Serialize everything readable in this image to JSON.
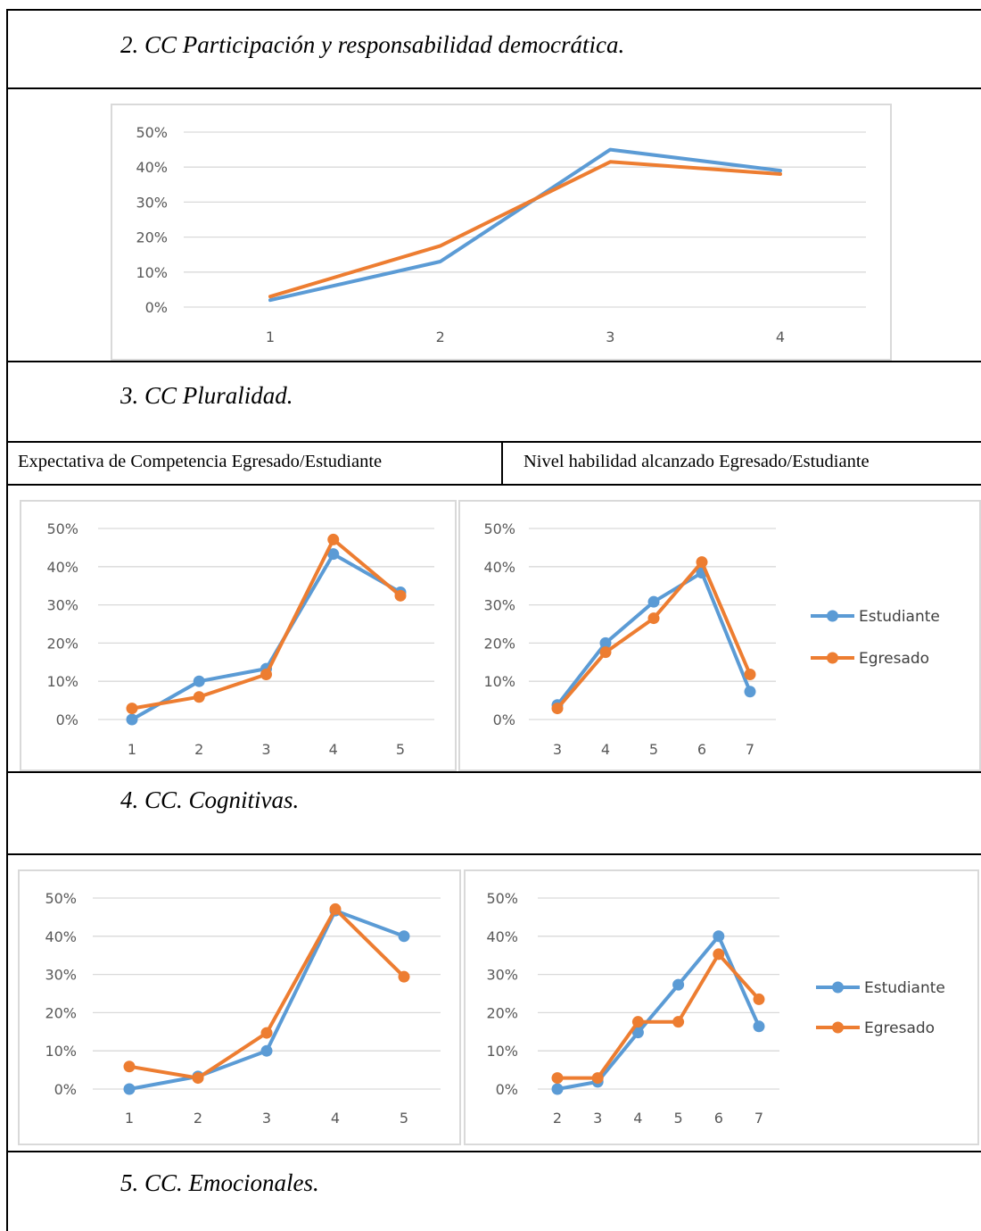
{
  "sections": {
    "s2_title": "2. CC Participación y responsabilidad democrática.",
    "s3_title": "3. CC Pluralidad.",
    "s4_title": "4. CC. Cognitivas.",
    "s5_title": "5. CC. Emocionales."
  },
  "column_headers": {
    "left": "Expectativa de Competencia Egresado/Estudiante",
    "right": "Nivel habilidad alcanzado Egresado/Estudiante"
  },
  "colors": {
    "estudiante": "#5b9bd5",
    "egresado": "#ed7d31",
    "grid": "#d9d9d9",
    "tick": "#595959"
  },
  "chart_data": [
    {
      "id": "c1",
      "type": "line",
      "title": "",
      "categories": [
        "1",
        "2",
        "3",
        "4"
      ],
      "ylim": [
        0,
        50
      ],
      "yticks": [
        "0%",
        "10%",
        "20%",
        "30%",
        "40%",
        "50%"
      ],
      "grid": true,
      "markers": false,
      "legend": [],
      "series": [
        {
          "key": "estudiante",
          "values": [
            2,
            13,
            45,
            39
          ]
        },
        {
          "key": "egresado",
          "values": [
            3,
            17.5,
            41.5,
            38
          ]
        }
      ]
    },
    {
      "id": "c2",
      "type": "line",
      "title": "",
      "categories": [
        "1",
        "2",
        "3",
        "4",
        "5"
      ],
      "ylim": [
        0,
        50
      ],
      "yticks": [
        "0%",
        "10%",
        "20%",
        "30%",
        "40%",
        "50%"
      ],
      "grid": true,
      "markers": true,
      "legend": [],
      "series": [
        {
          "key": "estudiante",
          "values": [
            0,
            10,
            13.3,
            43.3,
            33.3
          ]
        },
        {
          "key": "egresado",
          "values": [
            2.9,
            5.9,
            11.8,
            47.1,
            32.4
          ]
        }
      ]
    },
    {
      "id": "c3",
      "type": "line",
      "title": "",
      "categories": [
        "3",
        "4",
        "5",
        "6",
        "7"
      ],
      "ylim": [
        0,
        50
      ],
      "yticks": [
        "0%",
        "10%",
        "20%",
        "30%",
        "40%",
        "50%"
      ],
      "grid": true,
      "markers": true,
      "legend_position": "right",
      "legend": [
        "Estudiante",
        "Egresado"
      ],
      "series": [
        {
          "key": "estudiante",
          "name": "Estudiante",
          "values": [
            3.8,
            20,
            30.8,
            38.4,
            7.3
          ]
        },
        {
          "key": "egresado",
          "name": "Egresado",
          "values": [
            2.9,
            17.6,
            26.5,
            41.2,
            11.8
          ]
        }
      ]
    },
    {
      "id": "c4",
      "type": "line",
      "title": "",
      "categories": [
        "1",
        "2",
        "3",
        "4",
        "5"
      ],
      "ylim": [
        0,
        50
      ],
      "yticks": [
        "0%",
        "10%",
        "20%",
        "30%",
        "40%",
        "50%"
      ],
      "grid": true,
      "markers": true,
      "legend": [],
      "series": [
        {
          "key": "estudiante",
          "values": [
            0,
            3.3,
            10,
            46.7,
            40
          ]
        },
        {
          "key": "egresado",
          "values": [
            5.9,
            2.9,
            14.7,
            47.1,
            29.4
          ]
        }
      ]
    },
    {
      "id": "c5",
      "type": "line",
      "title": "",
      "categories": [
        "2",
        "3",
        "4",
        "5",
        "6",
        "7"
      ],
      "ylim": [
        0,
        50
      ],
      "yticks": [
        "0%",
        "10%",
        "20%",
        "30%",
        "40%",
        "50%"
      ],
      "grid": true,
      "markers": true,
      "legend_position": "right",
      "legend": [
        "Estudiante",
        "Egresado"
      ],
      "series": [
        {
          "key": "estudiante",
          "name": "Estudiante",
          "values": [
            0,
            1.9,
            14.8,
            27.3,
            40,
            16.4
          ]
        },
        {
          "key": "egresado",
          "name": "Egresado",
          "values": [
            2.9,
            2.9,
            17.6,
            17.6,
            35.3,
            23.5
          ]
        }
      ]
    }
  ]
}
